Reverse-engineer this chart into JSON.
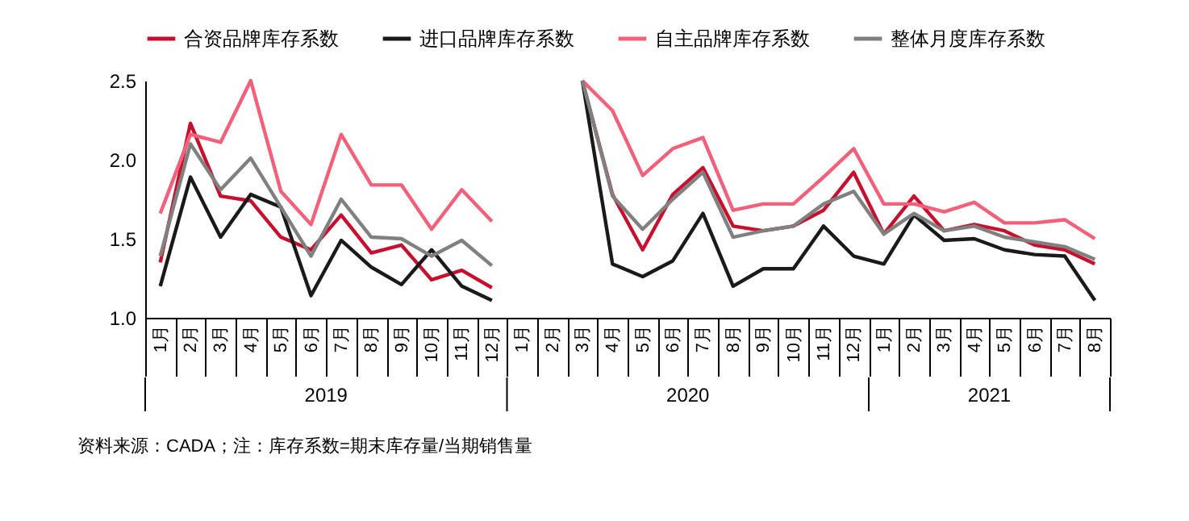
{
  "chart_data": {
    "type": "line",
    "categories": [
      "1月",
      "2月",
      "3月",
      "4月",
      "5月",
      "6月",
      "7月",
      "8月",
      "9月",
      "10月",
      "11月",
      "12月",
      "1月",
      "2月",
      "3月",
      "4月",
      "5月",
      "6月",
      "7月",
      "8月",
      "9月",
      "10月",
      "11月",
      "12月",
      "1月",
      "2月",
      "3月",
      "4月",
      "5月",
      "6月",
      "7月",
      "8月"
    ],
    "series": [
      {
        "name": "合资品牌库存系数",
        "color": "#c8102e",
        "values": [
          1.35,
          2.23,
          1.77,
          1.74,
          1.51,
          1.43,
          1.65,
          1.41,
          1.46,
          1.24,
          1.3,
          1.19,
          null,
          null,
          2.5,
          1.78,
          1.43,
          1.78,
          1.95,
          1.58,
          1.55,
          1.58,
          1.68,
          1.92,
          1.53,
          1.77,
          1.55,
          1.59,
          1.55,
          1.46,
          1.43,
          1.34
        ]
      },
      {
        "name": "进口品牌库存系数",
        "color": "#1a1a1a",
        "values": [
          1.2,
          1.89,
          1.51,
          1.78,
          1.7,
          1.14,
          1.49,
          1.32,
          1.21,
          1.43,
          1.2,
          1.11,
          null,
          null,
          2.5,
          1.34,
          1.26,
          1.36,
          1.66,
          1.2,
          1.31,
          1.31,
          1.58,
          1.39,
          1.34,
          1.65,
          1.49,
          1.5,
          1.43,
          1.4,
          1.39,
          1.11
        ]
      },
      {
        "name": "自主品牌库存系数",
        "color": "#f4607a",
        "values": [
          1.66,
          2.16,
          2.11,
          2.5,
          1.8,
          1.59,
          2.16,
          1.84,
          1.84,
          1.56,
          1.81,
          1.61,
          null,
          null,
          2.5,
          2.31,
          1.9,
          2.07,
          2.14,
          1.68,
          1.72,
          1.72,
          1.89,
          2.07,
          1.72,
          1.72,
          1.67,
          1.73,
          1.6,
          1.6,
          1.62,
          1.5
        ]
      },
      {
        "name": "整体月度库存系数",
        "color": "#808080",
        "values": [
          1.39,
          2.1,
          1.81,
          2.01,
          1.7,
          1.39,
          1.75,
          1.51,
          1.5,
          1.39,
          1.49,
          1.33,
          null,
          null,
          2.5,
          1.77,
          1.56,
          1.75,
          1.92,
          1.51,
          1.55,
          1.58,
          1.72,
          1.8,
          1.53,
          1.66,
          1.55,
          1.58,
          1.51,
          1.48,
          1.45,
          1.37
        ]
      }
    ],
    "ylim": [
      1.0,
      2.5
    ],
    "yticks": [
      {
        "value": 1.0,
        "label": "1.0"
      },
      {
        "value": 1.5,
        "label": "1.5"
      },
      {
        "value": 2.0,
        "label": "2.0"
      },
      {
        "value": 2.5,
        "label": "2.5"
      }
    ],
    "annotations": [
      "2019",
      "2020",
      "2021",
      "资料来源：CADA；注：库存系数=期末库存量/当期销售量"
    ],
    "legend": "top",
    "grid": false,
    "marker": "none",
    "line_style": "solid"
  }
}
